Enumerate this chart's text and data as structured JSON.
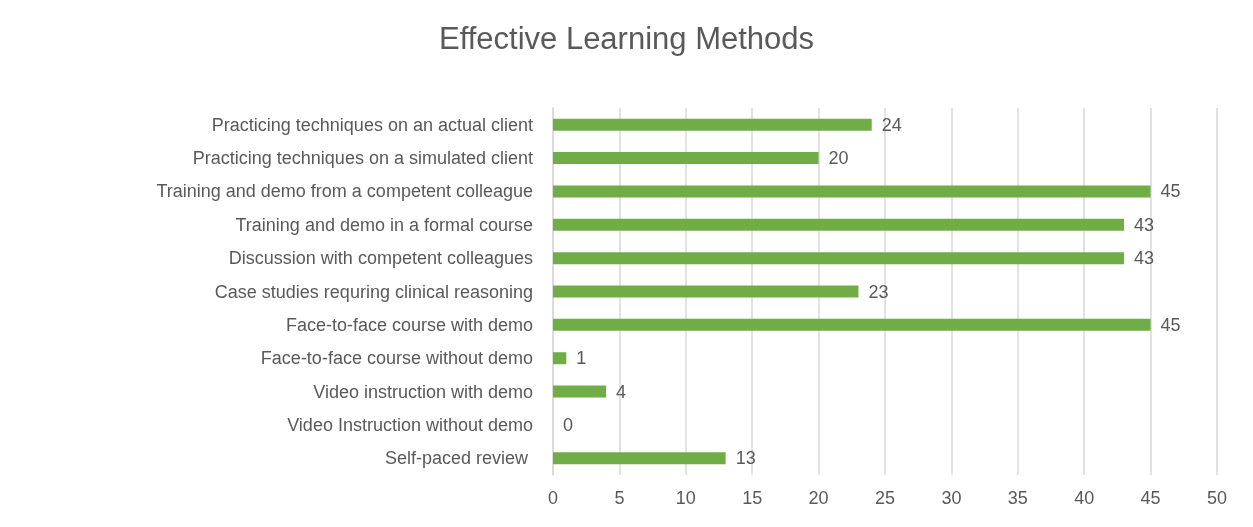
{
  "chart_data": {
    "type": "bar",
    "orientation": "horizontal",
    "title": "Effective Learning Methods",
    "categories": [
      "Practicing techniques on an actual client",
      "Practicing techniques on a simulated client",
      "Training and demo from a competent colleague",
      "Training and demo in a formal course",
      "Discussion with competent colleagues",
      "Case studies requring clinical reasoning",
      "Face-to-face course with demo",
      "Face-to-face course without demo",
      "Video instruction with demo",
      "Video Instruction without demo",
      "Self-paced review "
    ],
    "values": [
      24,
      20,
      45,
      43,
      43,
      23,
      45,
      1,
      4,
      0,
      13
    ],
    "color": "#70ad47",
    "xlim": [
      0,
      50
    ],
    "xticks": [
      0,
      5,
      10,
      15,
      20,
      25,
      30,
      35,
      40,
      45,
      50
    ],
    "grid": "x",
    "data_labels": true
  }
}
